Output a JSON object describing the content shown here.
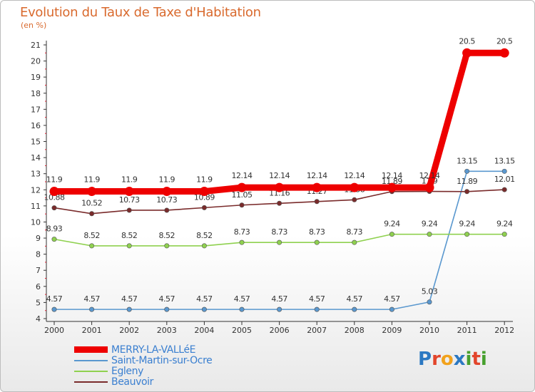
{
  "title": "Evolution du Taux de Taxe d'Habitation",
  "subtitle": "(en %)",
  "logo": {
    "text": "Proxiti",
    "colors": [
      "#2b78c2",
      "#e2452b",
      "#f2a21c",
      "#2b78c2",
      "#47a02e",
      "#e2452b",
      "#47a02e"
    ]
  },
  "chart_data": {
    "type": "line",
    "title": "Evolution du Taux de Taxe d'Habitation",
    "ylabel": "(en %)",
    "xlabel": "",
    "categories": [
      "2000",
      "2001",
      "2002",
      "2003",
      "2004",
      "2005",
      "2006",
      "2007",
      "2008",
      "2009",
      "2010",
      "2011",
      "2012"
    ],
    "ylim": [
      4,
      21
    ],
    "yticks": [
      "4",
      "5",
      "6",
      "7",
      "8",
      "9",
      "10",
      "11",
      "12",
      "13",
      "14",
      "15",
      "16",
      "17",
      "18",
      "19",
      "20",
      "21"
    ],
    "grid": false,
    "legend_position": "bottom-left",
    "series": [
      {
        "name": "MERRY-LA-VALLéE",
        "color": "#ee0000",
        "emphasis": "bold",
        "values": [
          11.9,
          11.9,
          11.9,
          11.9,
          11.9,
          12.14,
          12.14,
          12.14,
          12.14,
          12.14,
          12.14,
          20.5,
          20.5
        ],
        "labels": [
          "11.9",
          "11.9",
          "11.9",
          "11.9",
          "11.9",
          "12.14",
          "12.14",
          "12.14",
          "12.14",
          "12.14",
          "12.14",
          "20.5",
          "20.5"
        ]
      },
      {
        "name": "Saint-Martin-sur-Ocre",
        "color": "#5a98cf",
        "emphasis": "normal",
        "values": [
          4.57,
          4.57,
          4.57,
          4.57,
          4.57,
          4.57,
          4.57,
          4.57,
          4.57,
          4.57,
          5.03,
          13.15,
          13.15
        ],
        "labels": [
          "4.57",
          "4.57",
          "4.57",
          "4.57",
          "4.57",
          "4.57",
          "4.57",
          "4.57",
          "4.57",
          "4.57",
          "5.03",
          "13.15",
          "13.15"
        ]
      },
      {
        "name": "Egleny",
        "color": "#8fd14f",
        "emphasis": "normal",
        "values": [
          8.93,
          8.52,
          8.52,
          8.52,
          8.52,
          8.73,
          8.73,
          8.73,
          8.73,
          9.24,
          9.24,
          9.24,
          9.24
        ],
        "labels": [
          "8.93",
          "8.52",
          "8.52",
          "8.52",
          "8.52",
          "8.73",
          "8.73",
          "8.73",
          "8.73",
          "9.24",
          "9.24",
          "9.24",
          "9.24"
        ]
      },
      {
        "name": "Beauvoir",
        "color": "#7a2b2b",
        "emphasis": "normal",
        "values": [
          10.88,
          10.52,
          10.73,
          10.73,
          10.89,
          11.05,
          11.16,
          11.27,
          11.38,
          11.89,
          11.9,
          11.89,
          12.01
        ],
        "labels": [
          "10.88",
          "10.52",
          "10.73",
          "10.73",
          "10.89",
          "11.05",
          "11.16",
          "11.27",
          "11.38",
          "11.89",
          "11.9",
          "11.89",
          "12.01"
        ]
      }
    ]
  }
}
